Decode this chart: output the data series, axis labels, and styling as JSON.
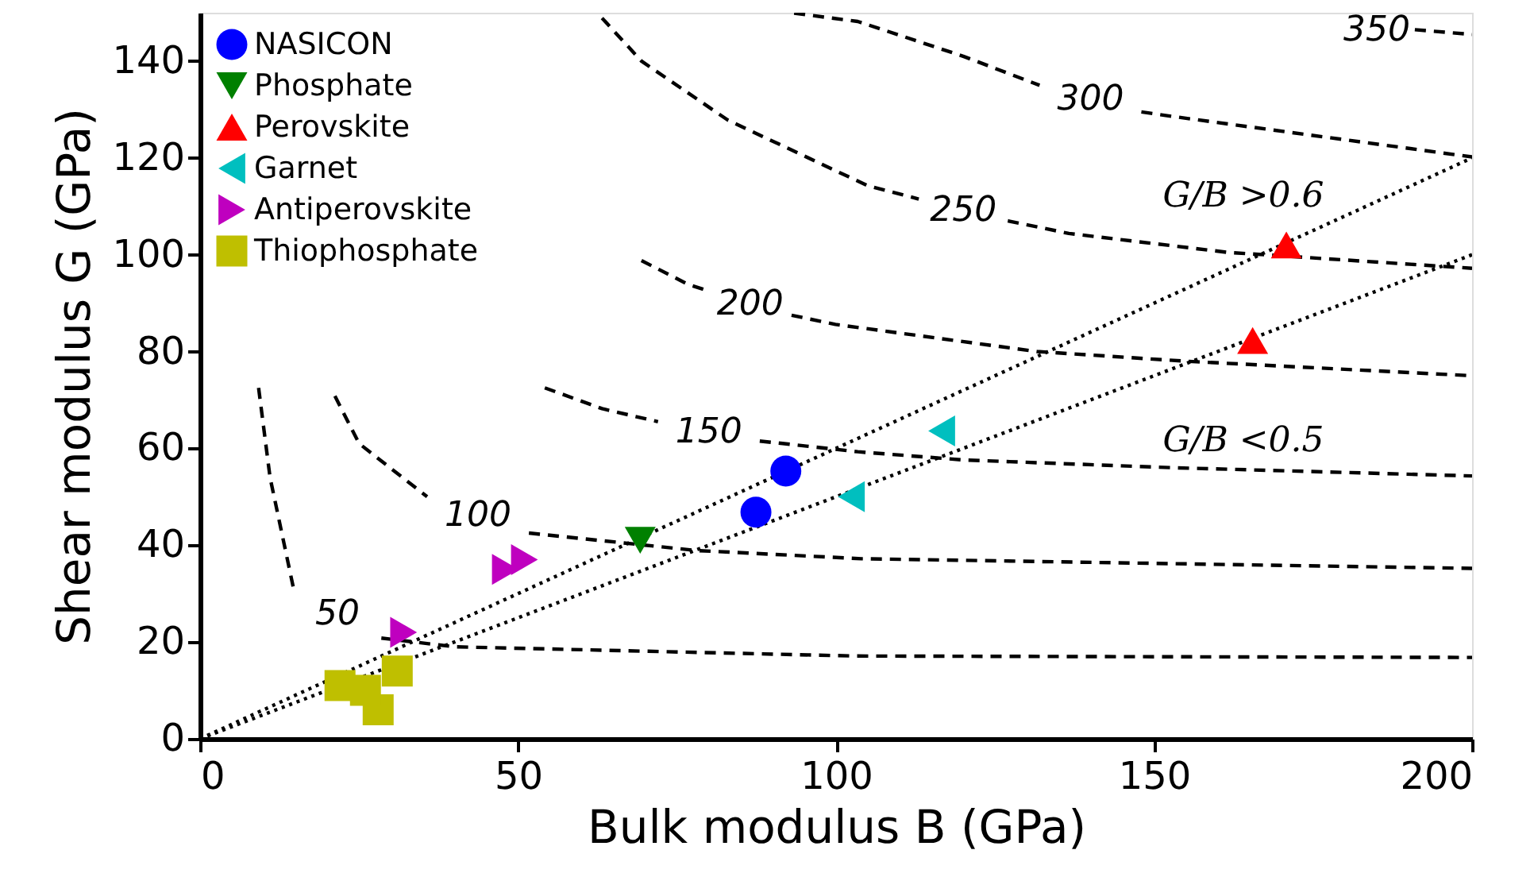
{
  "chart_data": {
    "type": "scatter",
    "xlabel": "Bulk modulus B (GPa)",
    "ylabel": "Shear modulus G (GPa)",
    "xlim": [
      0,
      200
    ],
    "xticks": [
      0,
      50,
      100,
      150,
      200
    ],
    "ylim": [
      0,
      150
    ],
    "yticks": [
      0,
      20,
      40,
      60,
      80,
      100,
      120,
      140
    ],
    "grid": false,
    "legend": "top left",
    "series": [
      {
        "name": "NASICON",
        "color": "#0000ff",
        "marker": "circle",
        "x": [
          87.4,
          92.1
        ],
        "values": [
          46.8,
          55.3
        ]
      },
      {
        "name": "Phosphate",
        "color": "#008000",
        "marker": "triangle-down",
        "x": [
          69.2
        ],
        "values": [
          41
        ]
      },
      {
        "name": "Perovskite",
        "color": "#ff0000",
        "marker": "triangle",
        "x": [
          170.8,
          165.5
        ],
        "values": [
          102,
          82.3
        ]
      },
      {
        "name": "Garnet",
        "color": "#00bfbf",
        "marker": "triangle-left",
        "x": [
          102.4,
          116.6
        ],
        "values": [
          50,
          63.6
        ]
      },
      {
        "name": "Antiperovskite",
        "color": "#bf00bf",
        "marker": "triangle-right",
        "x": [
          32,
          48,
          51
        ],
        "values": [
          22,
          35,
          37
        ]
      },
      {
        "name": "Thiophosphate",
        "color": "#bfbf00",
        "marker": "square",
        "x": [
          22,
          28,
          31,
          26
        ],
        "values": [
          11,
          6,
          14,
          10
        ]
      },
      {
        "type": "line",
        "line_style": "dotted",
        "color": "#000000",
        "x": [
          0,
          200
        ],
        "values": [
          0,
          120
        ]
      },
      {
        "type": "line",
        "line_style": "dotted",
        "color": "#000000",
        "x": [
          0,
          200
        ],
        "values": [
          0,
          100
        ]
      },
      {
        "name": "50",
        "type": "line",
        "line_style": "dashed",
        "color": "#000000",
        "x": [
          9.2,
          11,
          14.7,
          19.7,
          28.5,
          40,
          103,
          200
        ],
        "values": [
          72.5,
          54,
          31,
          null,
          20.8,
          19,
          17.1,
          16.8
        ]
      },
      {
        "name": "100",
        "type": "line",
        "line_style": "dashed",
        "color": "#000000",
        "x": [
          21.2,
          25,
          35.7,
          44,
          51.7,
          78,
          104,
          200
        ],
        "values": [
          70.8,
          61,
          50,
          null,
          42.5,
          38.9,
          37.2,
          35.2
        ]
      },
      {
        "name": "150",
        "type": "line",
        "line_style": "dashed",
        "color": "#000000",
        "x": [
          54.2,
          63.2,
          72,
          80,
          88,
          91.6,
          103.4,
          120,
          153,
          200
        ],
        "values": [
          72.5,
          68.2,
          65.5,
          null,
          61.5,
          61,
          59.3,
          57.6,
          56,
          54.3
        ]
      },
      {
        "name": "200",
        "type": "line",
        "line_style": "dashed",
        "color": "#000000",
        "x": [
          69.4,
          76.7,
          80,
          86.6,
          93,
          99.9,
          131.6,
          155,
          200
        ],
        "values": [
          98.8,
          93.9,
          92.5,
          null,
          87.5,
          85.6,
          80,
          78,
          75
        ]
      },
      {
        "name": "250",
        "type": "line",
        "line_style": "dashed",
        "color": "#000000",
        "x": [
          63.2,
          69.4,
          83,
          104.9,
          113,
          120,
          127,
          136.6,
          161.5,
          200
        ],
        "values": [
          148.9,
          140,
          127.8,
          114.3,
          111.5,
          null,
          107,
          104.4,
          100.5,
          97.2
        ]
      },
      {
        "name": "300",
        "type": "line",
        "line_style": "dashed",
        "color": "#000000",
        "x": [
          93.4,
          103.4,
          120,
          132,
          140,
          148,
          153.3,
          200
        ],
        "values": [
          149.9,
          148.2,
          141,
          135,
          null,
          129.5,
          128.5,
          120.2
        ]
      },
      {
        "name": "350",
        "type": "line",
        "line_style": "dashed",
        "color": "#000000",
        "x": [
          191,
          200
        ],
        "values": [
          146.5,
          145.5
        ]
      }
    ],
    "annotations": [
      "G/B >0.6",
      "G/B <0.5"
    ]
  }
}
